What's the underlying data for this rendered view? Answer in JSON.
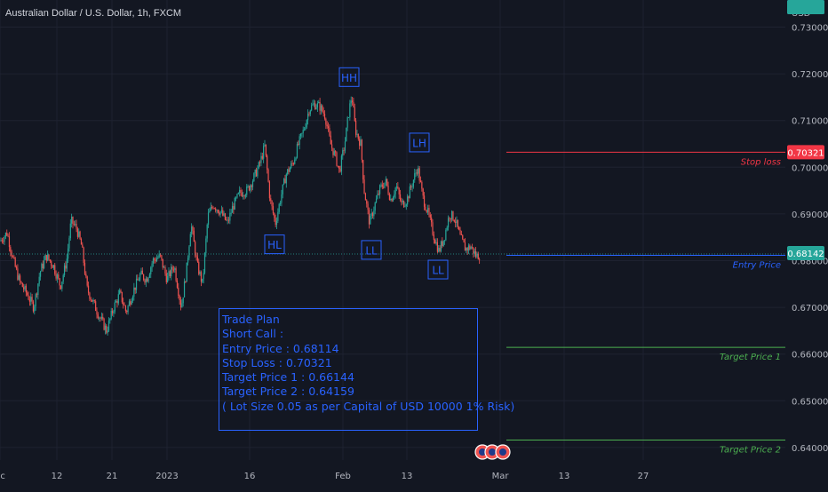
{
  "header": {
    "title": "Australian Dollar / U.S. Dollar, 1h, FXCM"
  },
  "chart_data": {
    "type": "candlestick",
    "currency": "USD",
    "ylim": [
      0.6385,
      0.734
    ],
    "y_ticks": [
      "0.73000",
      "0.72000",
      "0.71000",
      "0.70000",
      "0.69000",
      "0.68000",
      "0.67000",
      "0.66000",
      "0.65000",
      "0.64000"
    ],
    "x_ticks": [
      {
        "label": "ec",
        "t": 0
      },
      {
        "label": "12",
        "t": 64
      },
      {
        "label": "21",
        "t": 126
      },
      {
        "label": "2023",
        "t": 188
      },
      {
        "label": "16",
        "t": 281
      },
      {
        "label": "Feb",
        "t": 386
      },
      {
        "label": "13",
        "t": 458
      },
      {
        "label": "Mar",
        "t": 563
      },
      {
        "label": "13",
        "t": 635
      },
      {
        "label": "27",
        "t": 724
      }
    ],
    "price_path": [
      [
        0,
        0.6842
      ],
      [
        8,
        0.686
      ],
      [
        15,
        0.68
      ],
      [
        22,
        0.6755
      ],
      [
        30,
        0.673
      ],
      [
        38,
        0.67
      ],
      [
        45,
        0.6775
      ],
      [
        52,
        0.681
      ],
      [
        60,
        0.679
      ],
      [
        68,
        0.6745
      ],
      [
        75,
        0.68
      ],
      [
        80,
        0.6885
      ],
      [
        86,
        0.687
      ],
      [
        92,
        0.683
      ],
      [
        98,
        0.674
      ],
      [
        105,
        0.671
      ],
      [
        112,
        0.668
      ],
      [
        120,
        0.665
      ],
      [
        128,
        0.67
      ],
      [
        135,
        0.673
      ],
      [
        142,
        0.669
      ],
      [
        150,
        0.6735
      ],
      [
        158,
        0.677
      ],
      [
        165,
        0.676
      ],
      [
        172,
        0.68
      ],
      [
        180,
        0.681
      ],
      [
        188,
        0.676
      ],
      [
        196,
        0.679
      ],
      [
        204,
        0.67
      ],
      [
        210,
        0.678
      ],
      [
        215,
        0.688
      ],
      [
        222,
        0.679
      ],
      [
        228,
        0.675
      ],
      [
        234,
        0.6895
      ],
      [
        240,
        0.692
      ],
      [
        248,
        0.6905
      ],
      [
        256,
        0.688
      ],
      [
        262,
        0.6915
      ],
      [
        270,
        0.6945
      ],
      [
        278,
        0.695
      ],
      [
        285,
        0.6975
      ],
      [
        292,
        0.7005
      ],
      [
        298,
        0.7045
      ],
      [
        304,
        0.693
      ],
      [
        310,
        0.688
      ],
      [
        316,
        0.6935
      ],
      [
        322,
        0.6985
      ],
      [
        330,
        0.701
      ],
      [
        336,
        0.705
      ],
      [
        342,
        0.708
      ],
      [
        348,
        0.7125
      ],
      [
        354,
        0.7135
      ],
      [
        360,
        0.713
      ],
      [
        366,
        0.711
      ],
      [
        372,
        0.705
      ],
      [
        378,
        0.702
      ],
      [
        382,
        0.699
      ],
      [
        388,
        0.705
      ],
      [
        392,
        0.711
      ],
      [
        396,
        0.7155
      ],
      [
        400,
        0.708
      ],
      [
        406,
        0.705
      ],
      [
        410,
        0.695
      ],
      [
        416,
        0.688
      ],
      [
        422,
        0.692
      ],
      [
        428,
        0.6955
      ],
      [
        434,
        0.697
      ],
      [
        440,
        0.693
      ],
      [
        446,
        0.696
      ],
      [
        452,
        0.692
      ],
      [
        458,
        0.693
      ],
      [
        464,
        0.6965
      ],
      [
        470,
        0.7
      ],
      [
        476,
        0.6935
      ],
      [
        482,
        0.69
      ],
      [
        488,
        0.6855
      ],
      [
        494,
        0.682
      ],
      [
        500,
        0.685
      ],
      [
        506,
        0.69
      ],
      [
        512,
        0.689
      ],
      [
        518,
        0.685
      ],
      [
        524,
        0.6825
      ],
      [
        530,
        0.683
      ],
      [
        536,
        0.681
      ],
      [
        541,
        0.6812
      ]
    ],
    "current_price": "0.68142",
    "annotations": [
      {
        "text": "HH",
        "t": 393,
        "price": 0.7192
      },
      {
        "text": "LH",
        "t": 472,
        "price": 0.7052
      },
      {
        "text": "HL",
        "t": 309,
        "price": 0.6834
      },
      {
        "text": "LL",
        "t": 418,
        "price": 0.6822
      },
      {
        "text": "LL",
        "t": 493,
        "price": 0.678
      }
    ],
    "levels": [
      {
        "name": "Stop loss",
        "value": "0.70321",
        "price": 0.70321,
        "color": "#f23645",
        "text_color": "#f23645",
        "label_bg": "#f23645"
      },
      {
        "name": "Entry Price",
        "value": "0.68114",
        "price": 0.68114,
        "color": "#2962ff",
        "text_color": "#2962ff",
        "label_bg": "#2962ff"
      },
      {
        "name": "Target Price 1",
        "value": "0.66144",
        "price": 0.66144,
        "color": "#4caf50",
        "text_color": "#4caf50",
        "label_bg": "#26a69a"
      },
      {
        "name": "Target Price 2",
        "value": "0.64159",
        "price": 0.64159,
        "color": "#4caf50",
        "text_color": "#4caf50",
        "label_bg": "#26a69a"
      }
    ],
    "current_label_bg": "#26a69a"
  },
  "trade_plan": {
    "lines": [
      "Trade Plan",
      "Short Call :",
      "Entry Price : 0.68114",
      "Stop Loss : 0.70321",
      "Target Price 1 : 0.66144",
      "Target Price 2 : 0.64159",
      "",
      "( Lot Size 0.05 as per Capital of USD 10000 1% Risk)"
    ]
  },
  "colors": {
    "background": "#131722",
    "up": "#26a69a",
    "down": "#ef5350",
    "grid": "#1e2230",
    "axis_text": "#b2b5be"
  }
}
